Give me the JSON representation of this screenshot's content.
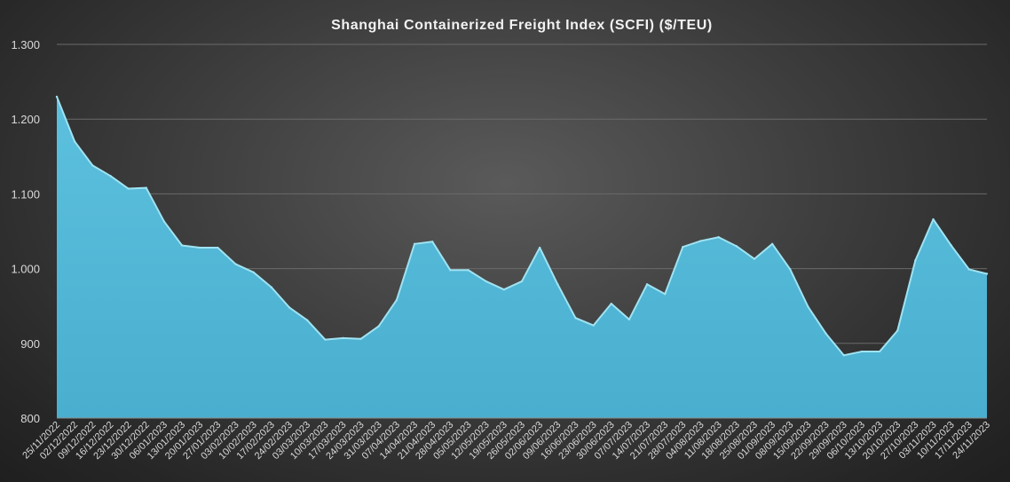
{
  "chart_data": {
    "type": "area",
    "title": "Shanghai  Containerized  Freight  Index  (SCFI)  ($/TEU)",
    "xlabel": "",
    "ylabel": "",
    "ylim": [
      800,
      1300
    ],
    "yticks": [
      800,
      900,
      1000,
      1100,
      1200,
      1300
    ],
    "ytick_labels": [
      "800",
      "900",
      "1.000",
      "1.100",
      "1.200",
      "1.300"
    ],
    "grid": true,
    "legend": "none",
    "fill_color": "#55b8d6",
    "line_color": "#9fe3f2",
    "x": [
      "25/11/2022",
      "02/12/2022",
      "09/12/2022",
      "16/12/2022",
      "23/12/2022",
      "30/12/2022",
      "06/01/2023",
      "13/01/2023",
      "20/01/2023",
      "27/01/2023",
      "03/02/2023",
      "10/02/2023",
      "17/02/2023",
      "24/02/2023",
      "03/03/2023",
      "10/03/2023",
      "17/03/2023",
      "24/03/2023",
      "31/03/2023",
      "07/04/2023",
      "14/04/2023",
      "21/04/2023",
      "28/04/2023",
      "05/05/2023",
      "12/05/2023",
      "19/05/2023",
      "26/05/2023",
      "02/06/2023",
      "09/06/2023",
      "16/06/2023",
      "23/06/2023",
      "30/06/2023",
      "07/07/2023",
      "14/07/2023",
      "21/07/2023",
      "28/07/2023",
      "04/08/2023",
      "11/08/2023",
      "18/08/2023",
      "25/08/2023",
      "01/09/2023",
      "08/09/2023",
      "15/09/2023",
      "22/09/2023",
      "29/09/2023",
      "06/10/2023",
      "13/10/2023",
      "20/10/2023",
      "27/10/2023",
      "03/11/2023",
      "10/11/2023",
      "17/11/2023",
      "24/11/2023"
    ],
    "values": [
      1230,
      1170,
      1138,
      1124,
      1107,
      1108,
      1063,
      1031,
      1028,
      1028,
      1006,
      995,
      975,
      948,
      931,
      905,
      907,
      906,
      923,
      958,
      1033,
      1036,
      998,
      998,
      983,
      972,
      983,
      1028,
      979,
      934,
      924,
      953,
      932,
      979,
      966,
      1029,
      1037,
      1042,
      1030,
      1013,
      1033,
      999,
      949,
      913,
      884,
      889,
      889,
      917,
      1011,
      1066,
      1031,
      999,
      993
    ]
  }
}
